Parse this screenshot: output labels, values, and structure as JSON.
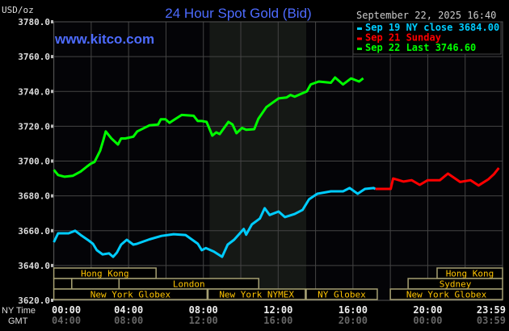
{
  "chart_data": {
    "type": "line",
    "title": "24 Hour Spot Gold (Bid)",
    "watermark": "www.kitco.com",
    "ylabel": "USD/oz",
    "timestamp": "September 22, 2025 16:40",
    "ylim": [
      3620,
      3780
    ],
    "yticks": [
      "3780.0",
      "3760.0",
      "3740.0",
      "3720.0",
      "3700.0",
      "3680.0",
      "3660.0",
      "3640.0",
      "3620.0"
    ],
    "xlim_hours": [
      0,
      24
    ],
    "x_axis_labels": {
      "ny_label": "NY Time",
      "gmt_label": "GMT",
      "ny": [
        "00:00",
        "04:00",
        "08:00",
        "12:00",
        "16:00",
        "20:00",
        "23:59"
      ],
      "gmt": [
        "04:00",
        "08:00",
        "12:00",
        "16:00",
        "20:00",
        "00:00",
        "03:59"
      ]
    },
    "grid": true,
    "legend_placement": "top-right",
    "highlight_band_hours": [
      8.33,
      13.5
    ],
    "series": [
      {
        "name": "Sep 19 NY close 3684.00",
        "color": "#00ccff",
        "x": [
          0,
          0.23,
          0.79,
          1.14,
          1.44,
          1.87,
          2.09,
          2.3,
          2.61,
          2.95,
          3.17,
          3.38,
          3.6,
          3.9,
          4.25,
          4.46,
          5.11,
          5.76,
          6.41,
          7.05,
          7.7,
          7.91,
          8.13,
          8.56,
          9.0,
          9.3,
          9.64,
          10.16,
          10.29,
          10.59,
          11.02,
          11.28,
          11.54,
          12.02,
          12.36,
          12.88,
          13.31,
          13.65,
          14.09,
          14.82,
          15.47,
          15.82,
          16.25,
          16.64,
          17.11,
          17.2
        ],
        "y": [
          3653.4,
          3658.5,
          3658.5,
          3660,
          3657.5,
          3654.3,
          3652.5,
          3648.8,
          3646.4,
          3647,
          3645,
          3647.5,
          3652,
          3654.8,
          3652,
          3652.5,
          3655,
          3657,
          3658,
          3657.5,
          3652.5,
          3648.8,
          3650,
          3648,
          3645,
          3652,
          3654.8,
          3661,
          3657.7,
          3663.6,
          3667,
          3672.9,
          3669,
          3671,
          3667.8,
          3669.6,
          3672,
          3678,
          3681.2,
          3682.6,
          3682.6,
          3684.5,
          3681.2,
          3684,
          3684.5,
          3684
        ]
      },
      {
        "name": "Sep 21 Sunday",
        "color": "#ff0000",
        "x": [
          17.2,
          18.02,
          18.15,
          18.71,
          19.14,
          19.57,
          20.0,
          20.65,
          21.08,
          21.73,
          22.29,
          22.72,
          23.24,
          23.54,
          23.8
        ],
        "y": [
          3684,
          3684,
          3690,
          3688.2,
          3689,
          3686.3,
          3689,
          3689,
          3692.8,
          3688,
          3689,
          3686,
          3689.5,
          3692.5,
          3696
        ]
      },
      {
        "name": "Sep 22 Last 3746.60",
        "color": "#00ff00",
        "x": [
          0,
          0.23,
          0.58,
          1.01,
          1.44,
          1.79,
          1.98,
          2.18,
          2.48,
          2.65,
          2.78,
          3.08,
          3.43,
          3.6,
          3.82,
          4.25,
          4.46,
          5.11,
          5.58,
          5.72,
          5.97,
          6.19,
          6.41,
          6.84,
          7.48,
          7.7,
          7.91,
          8.17,
          8.48,
          8.69,
          8.87,
          9.34,
          9.56,
          9.77,
          10.07,
          10.29,
          10.72,
          10.94,
          11.37,
          12.02,
          12.45,
          12.66,
          12.88,
          13.31,
          13.53,
          13.74,
          14.17,
          14.82,
          15.04,
          15.47,
          15.9,
          16.33,
          16.55
        ],
        "y": [
          3695,
          3692,
          3691,
          3691.5,
          3694,
          3697,
          3698.5,
          3699.5,
          3706,
          3712,
          3717,
          3713,
          3709.5,
          3713,
          3713,
          3714,
          3717,
          3720.5,
          3721,
          3724,
          3724,
          3722,
          3723.5,
          3726.5,
          3726,
          3723,
          3723,
          3722.5,
          3714.6,
          3716.5,
          3715.5,
          3722.5,
          3721,
          3716,
          3719,
          3718,
          3718.3,
          3724.3,
          3731,
          3736,
          3736.5,
          3738,
          3737,
          3739,
          3740,
          3744,
          3745.7,
          3745,
          3748,
          3744,
          3747.5,
          3745.7,
          3747.6
        ]
      }
    ],
    "sessions": [
      {
        "label": "Hong Kong",
        "row": 0,
        "start": 0,
        "end": 5.47
      },
      {
        "label": "Hong Kong",
        "row": 0,
        "start": 20.5,
        "end": 24
      },
      {
        "label": "",
        "row": 1,
        "start": 0,
        "end": 0.96
      },
      {
        "label": "",
        "row": 1,
        "start": 0.96,
        "end": 3.49
      },
      {
        "label": "London",
        "row": 1,
        "start": 3.49,
        "end": 10.96
      },
      {
        "label": "Sydney",
        "row": 1,
        "start": 18.95,
        "end": 24
      },
      {
        "label": "New York Globex",
        "row": 2,
        "start": 0,
        "end": 8.2
      },
      {
        "label": "New York NYMEX",
        "row": 2,
        "start": 8.25,
        "end": 13.45
      },
      {
        "label": "NY Globex",
        "row": 2,
        "start": 13.5,
        "end": 17.3
      },
      {
        "label": "New York Globex",
        "row": 2,
        "start": 18.0,
        "end": 24
      }
    ]
  }
}
